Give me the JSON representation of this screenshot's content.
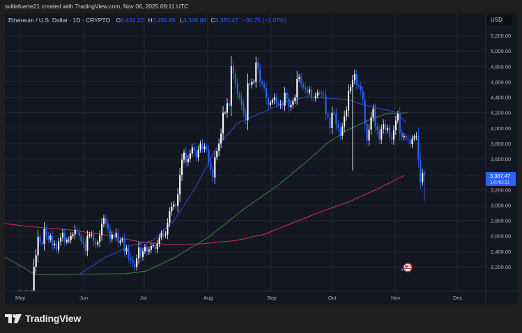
{
  "header": {
    "credit": "svillafuerte21 created with TradingView.com, Nov 06, 2025 09:11 UTC"
  },
  "legend": {
    "symbol": "Ethereum / U.S. Dollar · 1D · CRYPTO",
    "o_label": "O",
    "o_value": "3,424.22",
    "h_label": "H",
    "h_value": "3,455.85",
    "l_label": "L",
    "l_value": "3,366.88",
    "c_label": "C",
    "c_value": "3,387.47",
    "change": "−36.75 (−1.07%)"
  },
  "price_axis": {
    "currency": "USD",
    "ticks": [
      "5,200.00",
      "5,000.00",
      "4,800.00",
      "4,600.00",
      "4,400.00",
      "4,200.00",
      "4,000.00",
      "3,800.00",
      "3,600.00",
      "3,200.00",
      "3,000.00",
      "2,800.00",
      "2,600.00",
      "2,400.00",
      "2,200.00"
    ],
    "last_price": "3,387.47",
    "countdown": "14:48:11"
  },
  "time_axis": {
    "ticks": [
      "May",
      "Jun",
      "Jul",
      "Aug",
      "Sep",
      "Oct",
      "Nov",
      "Dec"
    ]
  },
  "branding": {
    "logo_text": "TradingView"
  },
  "colors": {
    "background": "#131722",
    "up_candle": "#ffffff",
    "down_candle": "#2962ff",
    "sma_blue": "#2e4bd6",
    "sma_green": "#3c8a3c",
    "sma_red": "#d0304a",
    "last_price_badge": "#2962ff"
  },
  "chart_data": {
    "type": "candlestick",
    "title": "Ethereum / U.S. Dollar · 1D · CRYPTO",
    "xlabel": "",
    "ylabel": "USD",
    "ylim": [
      2050,
      5300
    ],
    "x_ticks": [
      "May",
      "Jun",
      "Jul",
      "Aug",
      "Sep",
      "Oct",
      "Nov",
      "Dec"
    ],
    "y_ticks": [
      2200,
      2400,
      2600,
      2800,
      3000,
      3200,
      3400,
      3600,
      3800,
      4000,
      4200,
      4400,
      4600,
      4800,
      5000,
      5200
    ],
    "last": {
      "open": 3424.22,
      "high": 3455.85,
      "low": 3366.88,
      "close": 3387.47,
      "change": -36.75,
      "change_pct": -1.07
    },
    "start_date": "2025-05-01",
    "closes": [
      1840,
      1830,
      1810,
      1830,
      1820,
      1810,
      1820,
      2200,
      2350,
      2590,
      2520,
      2500,
      2690,
      2610,
      2550,
      2600,
      2480,
      2500,
      2420,
      2530,
      2580,
      2640,
      2520,
      2550,
      2550,
      2600,
      2620,
      2680,
      2660,
      2600,
      2530,
      2500,
      2410,
      2600,
      2620,
      2620,
      2530,
      2490,
      2520,
      2610,
      2760,
      2830,
      2760,
      2690,
      2560,
      2620,
      2590,
      2640,
      2510,
      2540,
      2560,
      2400,
      2440,
      2320,
      2290,
      2250,
      2200,
      2310,
      2450,
      2330,
      2400,
      2460,
      2400,
      2420,
      2470,
      2480,
      2430,
      2500,
      2580,
      2640,
      2610,
      2620,
      2770,
      2920,
      2980,
      3010,
      2990,
      3140,
      3390,
      3590,
      3680,
      3560,
      3600,
      3670,
      3750,
      3700,
      3620,
      3720,
      3800,
      3730,
      3760,
      3720,
      3560,
      3460,
      3360,
      3620,
      3700,
      3800,
      3930,
      4200,
      4200,
      4320,
      4290,
      4800,
      4700,
      4580,
      4440,
      4400,
      4300,
      4200,
      4100,
      4580,
      4560,
      4600,
      4600,
      4850,
      4770,
      4600,
      4580,
      4520,
      4390,
      4300,
      4330,
      4360,
      4400,
      4320,
      4300,
      4310,
      4290,
      4460,
      4380,
      4270,
      4300,
      4350,
      4400,
      4640,
      4660,
      4570,
      4530,
      4500,
      4460,
      4500,
      4400,
      4390,
      4420,
      4460,
      4450,
      4440,
      4430,
      4180,
      4140,
      4000,
      4200,
      4180,
      4050,
      4000,
      3900,
      4020,
      4150,
      4230,
      4480,
      4530,
      4620,
      4700,
      4560,
      4540,
      4480,
      4370,
      4050,
      3840,
      3980,
      4140,
      4250,
      4020,
      3970,
      3850,
      3990,
      4050,
      3970,
      4000,
      3880,
      3850,
      3970,
      4100,
      4180,
      3940,
      3880,
      3900,
      3860,
      3850,
      3790,
      3860,
      3890,
      3900,
      3590,
      3300,
      3420,
      3387
    ]
  }
}
